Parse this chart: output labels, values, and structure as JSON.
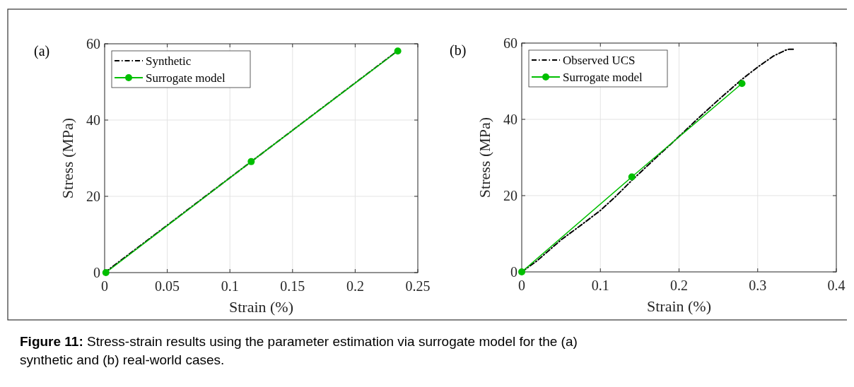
{
  "chart_data": [
    {
      "type": "line",
      "title": "(a)",
      "xlabel": "Strain (%)",
      "ylabel": "Stress (MPa)",
      "xlim": [
        0,
        0.25
      ],
      "xticks": [
        0,
        0.05,
        0.1,
        0.15,
        0.2,
        0.25
      ],
      "ylim": [
        0,
        60
      ],
      "yticks": [
        0,
        20,
        40,
        60
      ],
      "grid": true,
      "legend": "top left",
      "series": [
        {
          "name": "Synthetic",
          "color": "#000000",
          "line_style": "dashed",
          "marker": "none",
          "x": [
            0,
            0.234
          ],
          "values": [
            0,
            58.2
          ]
        },
        {
          "name": "Surrogate model",
          "color": "#00bf00",
          "line_style": "solid",
          "marker": "circle",
          "x": [
            0.001,
            0.117,
            0.234
          ],
          "values": [
            0,
            29.1,
            58.1
          ]
        }
      ]
    },
    {
      "type": "line",
      "title": "(b)",
      "xlabel": "Strain (%)",
      "ylabel": "Stress (MPa)",
      "xlim": [
        0,
        0.4
      ],
      "xticks": [
        0,
        0.1,
        0.2,
        0.3,
        0.4
      ],
      "ylim": [
        0,
        60
      ],
      "yticks": [
        0,
        20,
        40,
        60
      ],
      "grid": true,
      "legend": "top left",
      "annotations": [
        "Figure 11: Stress-strain results using the parameter estimation via surrogate model for the (a) synthetic and (b) real-world cases."
      ],
      "series": [
        {
          "name": "Observed UCS",
          "color": "#000000",
          "line_style": "dashed",
          "marker": "none",
          "x": [
            0,
            0.01,
            0.02,
            0.05,
            0.075,
            0.1,
            0.12,
            0.14,
            0.17,
            0.2,
            0.225,
            0.25,
            0.28,
            0.3,
            0.32,
            0.335,
            0.34,
            0.347
          ],
          "values": [
            0,
            1.5,
            3.0,
            8.4,
            12.2,
            16.1,
            19.9,
            24.0,
            29.8,
            35.5,
            40.4,
            45.1,
            50.5,
            53.7,
            56.6,
            58.1,
            58.4,
            58.4
          ]
        },
        {
          "name": "Surrogate model",
          "color": "#00bf00",
          "line_style": "solid",
          "marker": "circle",
          "x": [
            0,
            0.14,
            0.28
          ],
          "values": [
            0,
            24.9,
            49.4
          ]
        }
      ]
    }
  ]
}
